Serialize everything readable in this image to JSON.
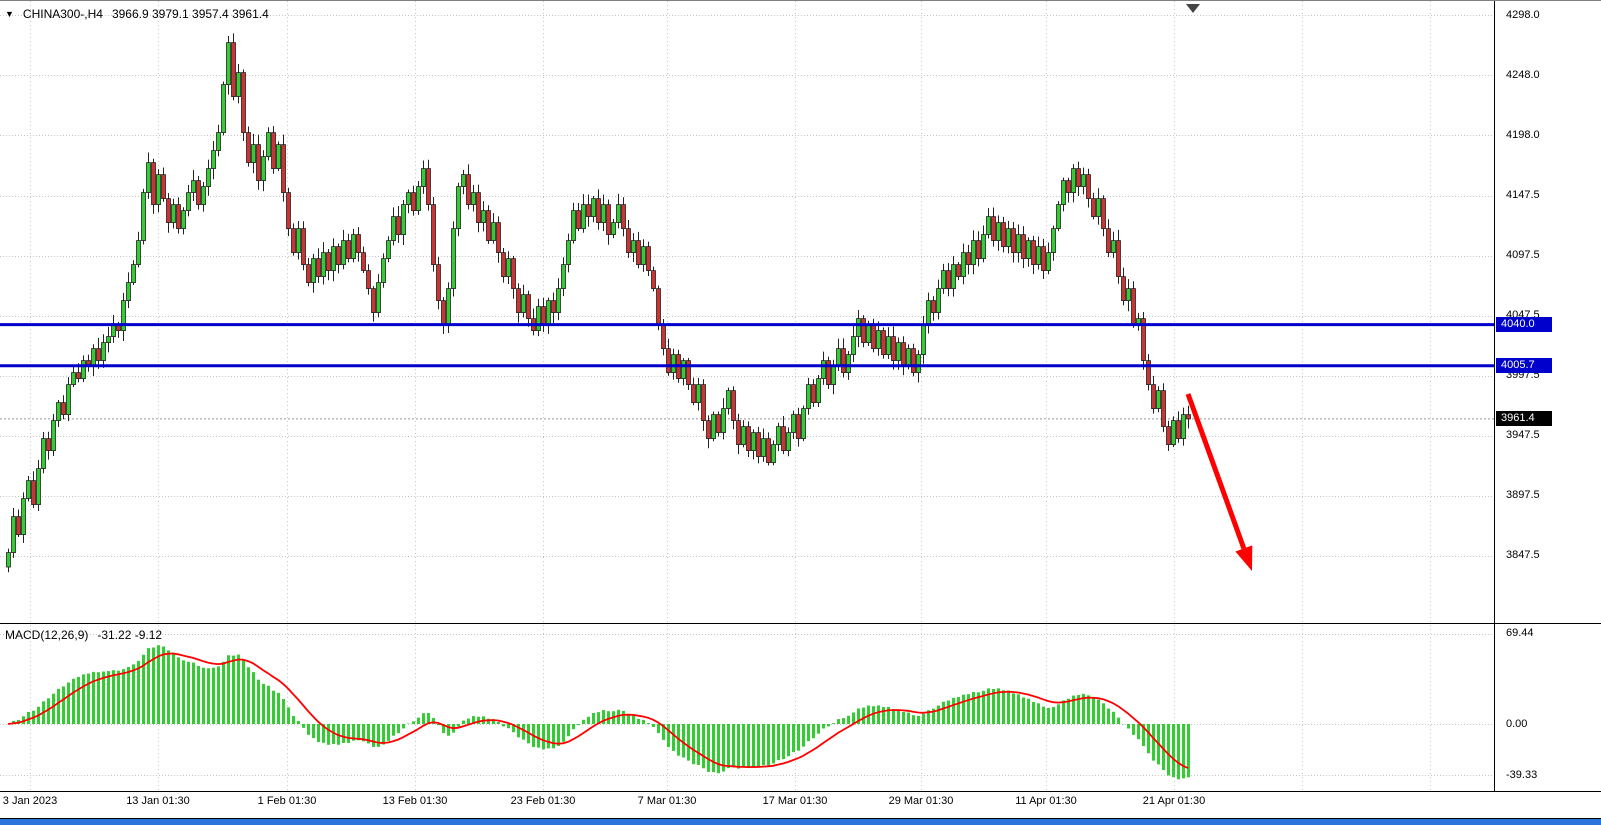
{
  "window": {
    "bottom_bar_color": "#2b72da"
  },
  "header": {
    "dropdown_icon": "▼",
    "symbol": "CHINA300-,H4",
    "ohlc": "3966.9 3979.1 3957.4 3961.4"
  },
  "chart_data": {
    "type": "candlestick",
    "symbol": "CHINA300-,H4",
    "timeframe": "H4",
    "price_axis_ticks": [
      "4298.0",
      "4248.0",
      "4198.0",
      "4147.5",
      "4097.5",
      "4047.5",
      "3997.5",
      "3947.5",
      "3897.5",
      "3847.5"
    ],
    "x_axis_labels": [
      "3 Jan 2023",
      "13 Jan 01:30",
      "1 Feb 01:30",
      "13 Feb 01:30",
      "23 Feb 01:30",
      "7 Mar 01:30",
      "17 Mar 01:30",
      "29 Mar 01:30",
      "11 Apr 01:30",
      "21 Apr 01:30"
    ],
    "horizontal_lines": [
      {
        "price": 4040.0,
        "label": "4040.0",
        "color": "#0000CC"
      },
      {
        "price": 4005.7,
        "label": "4005.7",
        "color": "#0000CC"
      }
    ],
    "current_price": {
      "value": 3961.4,
      "label": "3961.4",
      "tag_bg": "#000000"
    },
    "closes": [
      3850,
      3880,
      3865,
      3895,
      3910,
      3890,
      3920,
      3945,
      3935,
      3960,
      3975,
      3965,
      3990,
      4000,
      3995,
      4010,
      4005,
      4020,
      4010,
      4025,
      4030,
      4040,
      4035,
      4060,
      4075,
      4090,
      4110,
      4150,
      4175,
      4140,
      4165,
      4145,
      4125,
      4140,
      4120,
      4135,
      4150,
      4160,
      4140,
      4155,
      4170,
      4185,
      4200,
      4240,
      4275,
      4230,
      4250,
      4200,
      4175,
      4190,
      4160,
      4180,
      4200,
      4170,
      4190,
      4150,
      4120,
      4100,
      4120,
      4090,
      4075,
      4095,
      4080,
      4100,
      4085,
      4105,
      4090,
      4110,
      4095,
      4115,
      4100,
      4085,
      4070,
      4050,
      4075,
      4095,
      4110,
      4130,
      4115,
      4140,
      4150,
      4135,
      4155,
      4170,
      4140,
      4090,
      4060,
      4040,
      4070,
      4120,
      4155,
      4165,
      4140,
      4150,
      4125,
      4135,
      4110,
      4125,
      4100,
      4080,
      4095,
      4070,
      4050,
      4065,
      4045,
      4035,
      4055,
      4040,
      4060,
      4050,
      4070,
      4090,
      4110,
      4135,
      4120,
      4140,
      4130,
      4145,
      4125,
      4140,
      4115,
      4125,
      4140,
      4120,
      4100,
      4110,
      4090,
      4105,
      4085,
      4070,
      4040,
      4020,
      4000,
      4015,
      3995,
      4010,
      3990,
      3975,
      3990,
      3960,
      3945,
      3965,
      3950,
      3970,
      3985,
      3960,
      3940,
      3955,
      3935,
      3950,
      3930,
      3945,
      3925,
      3940,
      3955,
      3935,
      3950,
      3965,
      3945,
      3970,
      3990,
      3975,
      3995,
      4010,
      3990,
      4005,
      4020,
      4000,
      4015,
      4030,
      4045,
      4025,
      4040,
      4020,
      4035,
      4015,
      4030,
      4010,
      4025,
      4005,
      4020,
      4000,
      4015,
      4040,
      4060,
      4050,
      4070,
      4085,
      4070,
      4090,
      4080,
      4100,
      4090,
      4110,
      4095,
      4115,
      4130,
      4110,
      4125,
      4105,
      4120,
      4100,
      4115,
      4095,
      4110,
      4090,
      4105,
      4085,
      4100,
      4120,
      4140,
      4160,
      4150,
      4170,
      4155,
      4165,
      4145,
      4130,
      4145,
      4120,
      4100,
      4110,
      4080,
      4060,
      4070,
      4040,
      4045,
      4010,
      3990,
      3970,
      3985,
      3955,
      3940,
      3960,
      3945,
      3965,
      3961.4
    ],
    "colors": {
      "bull": "#33CC33",
      "bear": "#CC3333",
      "wick": "#222222",
      "grid": "#c6c6c6",
      "separator": "#000000",
      "current_line": "#999999"
    },
    "annotation_arrow": {
      "from": [
        1188,
        393
      ],
      "to": [
        1252,
        570
      ],
      "color": "#FF0000"
    },
    "macd": {
      "label": "MACD(12,26,9)",
      "values_text": "-31.22 -9.12",
      "params": [
        12,
        26,
        9
      ],
      "axis_ticks": [
        "69.44",
        "0.00",
        "-39.33"
      ],
      "histogram_color": "#33CC33",
      "signal_color": "#FF0000"
    }
  }
}
